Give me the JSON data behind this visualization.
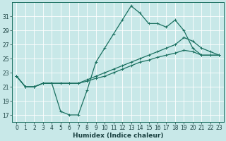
{
  "xlabel": "Humidex (Indice chaleur)",
  "background_color": "#c8e8e8",
  "grid_color": "#b0d8d8",
  "line_color": "#1a7060",
  "xlim": [
    -0.5,
    23.5
  ],
  "ylim": [
    16.0,
    33.0
  ],
  "yticks": [
    17,
    19,
    21,
    23,
    25,
    27,
    29,
    31
  ],
  "xticks": [
    0,
    1,
    2,
    3,
    4,
    5,
    6,
    7,
    8,
    9,
    10,
    11,
    12,
    13,
    14,
    15,
    16,
    17,
    18,
    19,
    20,
    21,
    22,
    23
  ],
  "curves": [
    [
      22.5,
      21.0,
      21.0,
      21.5,
      21.5,
      17.5,
      17.0,
      17.0,
      20.5,
      24.5,
      26.5,
      28.5,
      30.5,
      32.5,
      31.5,
      30.0,
      30.0,
      29.5,
      30.5,
      29.0,
      26.5,
      25.5,
      25.5,
      25.5
    ],
    [
      22.5,
      21.0,
      21.0,
      21.5,
      21.5,
      21.5,
      21.5,
      21.5,
      22.0,
      22.5,
      23.0,
      23.5,
      24.0,
      24.5,
      25.0,
      25.5,
      26.0,
      26.5,
      27.0,
      28.0,
      27.5,
      26.5,
      26.0,
      25.5
    ],
    [
      22.5,
      21.0,
      21.0,
      21.5,
      21.5,
      21.5,
      21.5,
      21.5,
      21.8,
      22.2,
      22.5,
      23.0,
      23.5,
      24.0,
      24.5,
      24.8,
      25.2,
      25.5,
      25.8,
      26.2,
      26.0,
      25.5,
      25.5,
      25.5
    ]
  ],
  "line_width": 0.9,
  "marker_size": 2.5,
  "tick_fontsize": 5.5,
  "label_fontsize": 6.5
}
